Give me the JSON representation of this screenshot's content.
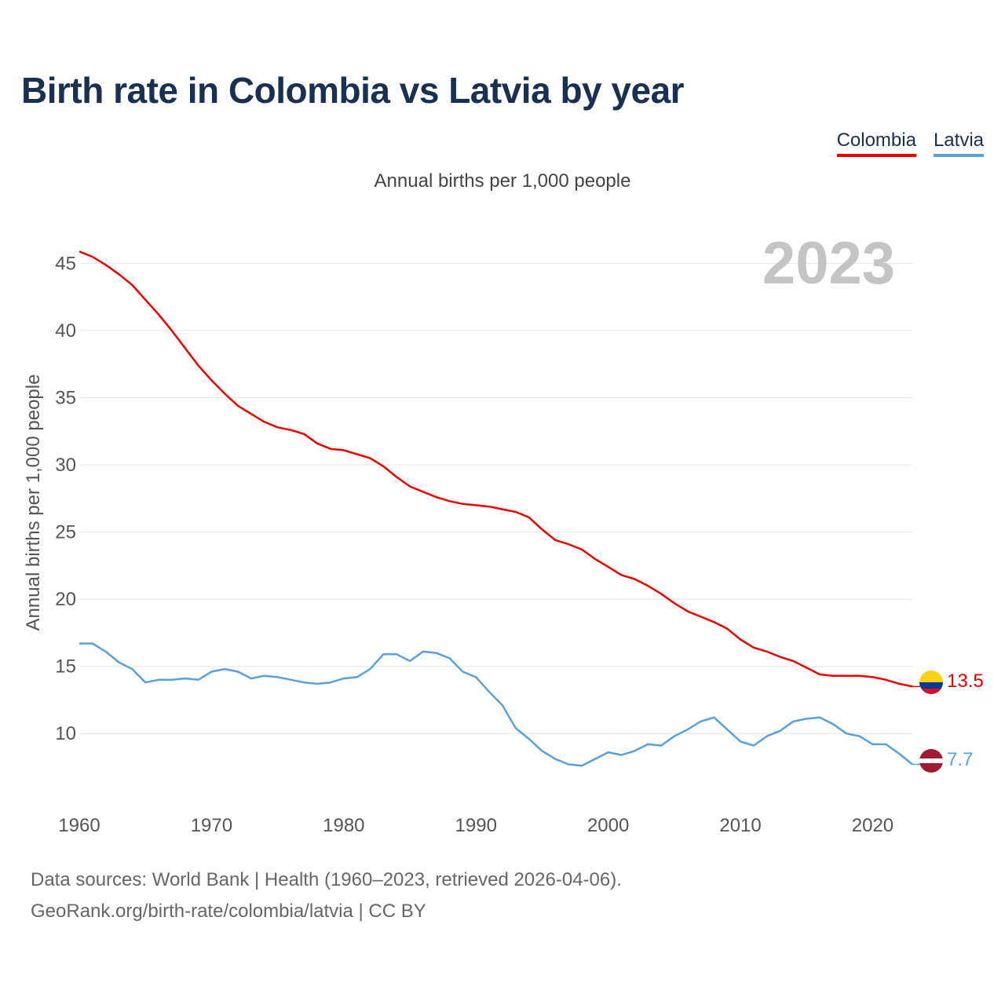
{
  "title": "Birth rate in Colombia vs Latvia by year",
  "subtitle": "Annual births per 1,000 people",
  "legend": {
    "colombia": "Colombia",
    "latvia": "Latvia"
  },
  "year_label": "2023",
  "source_line1": "Data sources: World Bank | Health (1960–2023, retrieved 2026-04-06).",
  "source_line2": "GeoRank.org/birth-rate/colombia/latvia | CC BY",
  "colors": {
    "colombia": "#ee0000",
    "latvia": "#5aa0e0",
    "title": "#1a3050"
  },
  "chart_data": {
    "type": "line",
    "title": "Birth rate in Colombia vs Latvia by year",
    "ylabel": "Annual births per 1,000 people",
    "xlabel": "",
    "xlim": [
      1960,
      2023
    ],
    "ylim": [
      5.1,
      46.5
    ],
    "yticks": [
      10,
      15,
      20,
      25,
      30,
      35,
      40,
      45
    ],
    "xticks": [
      1960,
      1970,
      1980,
      1990,
      2000,
      2010,
      2020
    ],
    "grid": true,
    "legend_position": "top-right",
    "x": [
      1960,
      1961,
      1962,
      1963,
      1964,
      1965,
      1966,
      1967,
      1968,
      1969,
      1970,
      1971,
      1972,
      1973,
      1974,
      1975,
      1976,
      1977,
      1978,
      1979,
      1980,
      1981,
      1982,
      1983,
      1984,
      1985,
      1986,
      1987,
      1988,
      1989,
      1990,
      1991,
      1992,
      1993,
      1994,
      1995,
      1996,
      1997,
      1998,
      1999,
      2000,
      2001,
      2002,
      2003,
      2004,
      2005,
      2006,
      2007,
      2008,
      2009,
      2010,
      2011,
      2012,
      2013,
      2014,
      2015,
      2016,
      2017,
      2018,
      2019,
      2020,
      2021,
      2022,
      2023
    ],
    "series": [
      {
        "name": "Colombia",
        "color": "#ee0000",
        "end_label": "13.5",
        "values": [
          45.9,
          45.5,
          44.9,
          44.2,
          43.4,
          42.3,
          41.2,
          40.0,
          38.7,
          37.4,
          36.3,
          35.3,
          34.4,
          33.8,
          33.2,
          32.8,
          32.6,
          32.3,
          31.6,
          31.2,
          31.1,
          30.8,
          30.5,
          29.9,
          29.1,
          28.4,
          28.0,
          27.6,
          27.3,
          27.1,
          27.0,
          26.9,
          26.7,
          26.5,
          26.1,
          25.2,
          24.4,
          24.1,
          23.7,
          23.0,
          22.4,
          21.8,
          21.5,
          21.0,
          20.4,
          19.7,
          19.1,
          18.7,
          18.3,
          17.8,
          17.0,
          16.4,
          16.1,
          15.7,
          15.4,
          14.9,
          14.4,
          14.3,
          14.3,
          14.3,
          14.2,
          14.0,
          13.7,
          13.5
        ]
      },
      {
        "name": "Latvia",
        "color": "#5aa0e0",
        "end_label": "7.7",
        "values": [
          16.7,
          16.7,
          16.1,
          15.3,
          14.8,
          13.8,
          14.0,
          14.0,
          14.1,
          14.0,
          14.6,
          14.8,
          14.6,
          14.1,
          14.3,
          14.2,
          14.0,
          13.8,
          13.7,
          13.8,
          14.1,
          14.2,
          14.8,
          15.9,
          15.9,
          15.4,
          16.1,
          16.0,
          15.6,
          14.6,
          14.2,
          13.1,
          12.1,
          10.4,
          9.6,
          8.7,
          8.1,
          7.7,
          7.6,
          8.1,
          8.6,
          8.4,
          8.7,
          9.2,
          9.1,
          9.8,
          10.3,
          10.9,
          11.2,
          10.3,
          9.4,
          9.1,
          9.8,
          10.2,
          10.9,
          11.1,
          11.2,
          10.7,
          10.0,
          9.8,
          9.2,
          9.2,
          8.5,
          7.7
        ]
      }
    ]
  }
}
